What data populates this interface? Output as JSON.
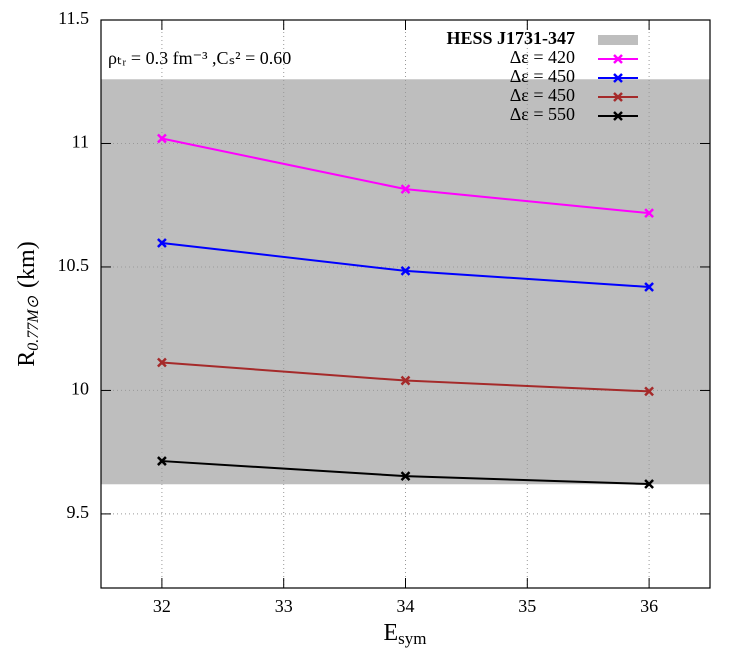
{
  "chart_data": {
    "type": "line",
    "x": [
      32,
      34,
      36
    ],
    "xlim": [
      31.5,
      36.5
    ],
    "xticks": [
      32,
      33,
      34,
      35,
      36
    ],
    "ylim": [
      9.2,
      11.5
    ],
    "yticks": [
      9.5,
      10,
      10.5,
      11,
      11.5
    ],
    "grid": true,
    "xlabel": {
      "main": "E",
      "sub": "sym"
    },
    "ylabel": {
      "main": "R",
      "sub": "0.77M⊙",
      "unit": "(km)"
    },
    "annotation": "ρₜᵣ = 0.3 fm⁻³ ,Cₛ² = 0.60",
    "legend": "top-right",
    "band": {
      "name": "HESS J1731-347",
      "color": "#bebebe",
      "range": [
        9.62,
        11.26
      ]
    },
    "series": [
      {
        "name": "Δε = 420",
        "color": "#ff00ff",
        "values": [
          11.02,
          10.815,
          10.718
        ]
      },
      {
        "name": "Δε = 450",
        "color": "#0000ff",
        "values": [
          10.597,
          10.484,
          10.419
        ]
      },
      {
        "name": "Δε = 450",
        "color": "#a52a2a",
        "values": [
          10.113,
          10.04,
          9.996
        ]
      },
      {
        "name": "Δε = 550",
        "color": "#000000",
        "values": [
          9.714,
          9.653,
          9.621
        ]
      }
    ]
  }
}
